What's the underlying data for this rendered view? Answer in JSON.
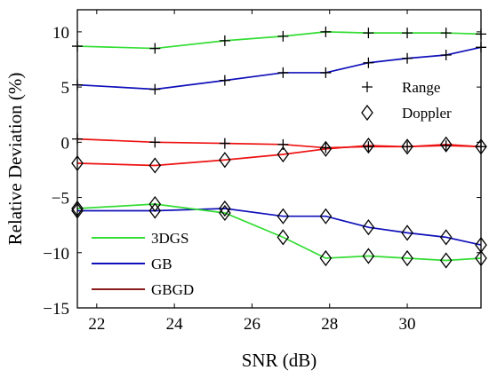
{
  "chart_data": {
    "type": "line",
    "xlabel": "SNR (dB)",
    "ylabel": "Relative Deviation (%)",
    "xlim": [
      21.5,
      31.9
    ],
    "ylim": [
      -15,
      12
    ],
    "xticks": [
      22,
      24,
      26,
      28,
      30
    ],
    "yticks": [
      10,
      5,
      0,
      -5,
      -10,
      -15
    ],
    "grid": false,
    "x": [
      21.5,
      23.5,
      25.3,
      26.8,
      27.9,
      29.0,
      30.0,
      31.0,
      31.9
    ],
    "series": [
      {
        "name": "3DGS",
        "metric": "Range",
        "color": "#33dd33",
        "marker": "plus",
        "values": [
          8.7,
          8.5,
          9.2,
          9.6,
          10.0,
          9.9,
          9.9,
          9.9,
          9.8
        ]
      },
      {
        "name": "GB",
        "metric": "Range",
        "color": "#1010bb",
        "marker": "plus",
        "values": [
          5.2,
          4.8,
          5.6,
          6.3,
          6.3,
          7.2,
          7.6,
          7.9,
          8.6
        ]
      },
      {
        "name": "GBGD",
        "metric": "Range",
        "color": "#ee1111",
        "marker": "plus",
        "values": [
          0.3,
          0.0,
          -0.1,
          -0.2,
          -0.5,
          -0.4,
          -0.4,
          -0.3,
          -0.4
        ]
      },
      {
        "name": "GBGD",
        "metric": "Doppler",
        "color": "#ee1111",
        "marker": "diamond",
        "values": [
          -1.9,
          -2.1,
          -1.6,
          -1.1,
          -0.6,
          -0.3,
          -0.4,
          -0.2,
          -0.4
        ]
      },
      {
        "name": "GB",
        "metric": "Doppler",
        "color": "#1010bb",
        "marker": "diamond",
        "values": [
          -6.2,
          -6.2,
          -6.0,
          -6.7,
          -6.7,
          -7.7,
          -8.2,
          -8.6,
          -9.3
        ]
      },
      {
        "name": "3DGS",
        "metric": "Doppler",
        "color": "#33dd33",
        "marker": "diamond",
        "values": [
          -6.0,
          -5.6,
          -6.4,
          -8.6,
          -10.5,
          -10.3,
          -10.5,
          -10.7,
          -10.5
        ]
      }
    ],
    "legend_markers": [
      {
        "label": "Range",
        "marker": "plus"
      },
      {
        "label": "Doppler",
        "marker": "diamond"
      }
    ],
    "legend_markers_position": "upper-right",
    "legend_methods": [
      {
        "label": "3DGS",
        "color": "#33dd33"
      },
      {
        "label": "GB",
        "color": "#1010bb"
      },
      {
        "label": "GBGD",
        "color": "#8b1a1a"
      }
    ],
    "legend_methods_position": "lower-left"
  }
}
